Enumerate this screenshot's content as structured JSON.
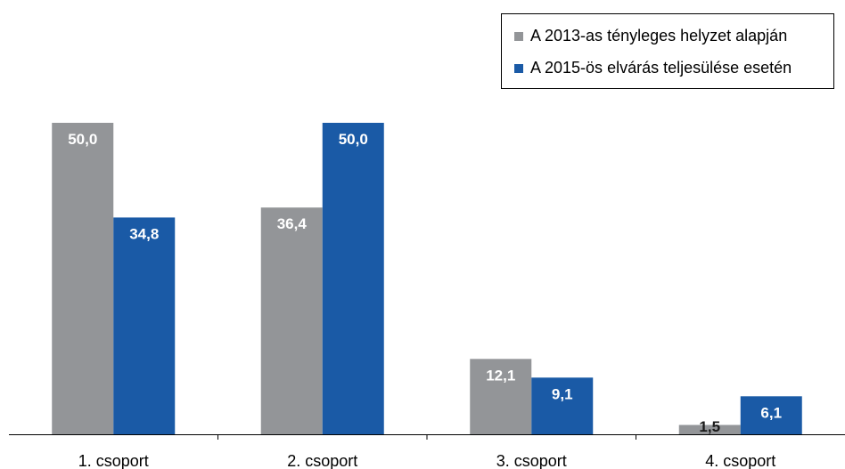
{
  "chart_data": {
    "type": "bar",
    "categories": [
      "1. csoport",
      "2. csoport",
      "3. csoport",
      "4. csoport"
    ],
    "series": [
      {
        "name": "A 2013-as tényleges helyzet alapján",
        "color": "#939598",
        "values": [
          50.0,
          36.4,
          12.1,
          1.5
        ],
        "labels": [
          "50,0",
          "36,4",
          "12,1",
          "1,5"
        ]
      },
      {
        "name": "A 2015-ös elvárás teljesülése esetén",
        "color": "#1a5aa6",
        "values": [
          34.8,
          50.0,
          9.1,
          6.1
        ],
        "labels": [
          "34,8",
          "50,0",
          "9,1",
          "6,1"
        ]
      }
    ],
    "ylim": [
      0,
      50
    ],
    "grid": false,
    "legend_position": "top-right"
  }
}
